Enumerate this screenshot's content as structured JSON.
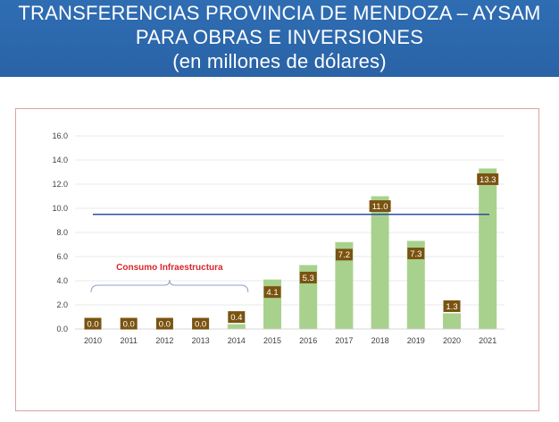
{
  "header": {
    "title_line1": "TRANSFERENCIAS PROVINCIA DE MENDOZA – AYSAM",
    "title_line2": "PARA OBRAS E INVERSIONES",
    "title_line3": "(en millones de dólares)"
  },
  "colors": {
    "title_band": "#2f6db3",
    "bar": "#a9d18e",
    "label_box": "#7a5310",
    "reference_line": "#2f4f9e",
    "frame": "#d9a3a3"
  },
  "chart_data": {
    "type": "bar",
    "title": "",
    "xlabel": "",
    "ylabel": "",
    "categories": [
      "2010",
      "2011",
      "2012",
      "2013",
      "2014",
      "2015",
      "2016",
      "2017",
      "2018",
      "2019",
      "2020",
      "2021"
    ],
    "values": [
      0.0,
      0.0,
      0.0,
      0.0,
      0.4,
      4.1,
      5.3,
      7.2,
      11.0,
      7.3,
      1.3,
      13.3
    ],
    "data_labels": [
      "0.0",
      "0.0",
      "0.0",
      "0.0",
      "0.4",
      "4.1",
      "5.3",
      "7.2",
      "11.0",
      "7.3",
      "1.3",
      "13.3"
    ],
    "ylim": [
      0,
      16
    ],
    "yticks": [
      0,
      2,
      4,
      6,
      8,
      10,
      12,
      14,
      16
    ],
    "ytick_labels": [
      "0.0",
      "2.0",
      "4.0",
      "6.0",
      "8.0",
      "10.0",
      "12.0",
      "14.0",
      "16.0"
    ],
    "grid": true,
    "reference_line": {
      "y": 9.5
    },
    "annotation": {
      "text": "Consumo Infraestructura",
      "from_category": "2010",
      "to_category": "2014"
    }
  }
}
